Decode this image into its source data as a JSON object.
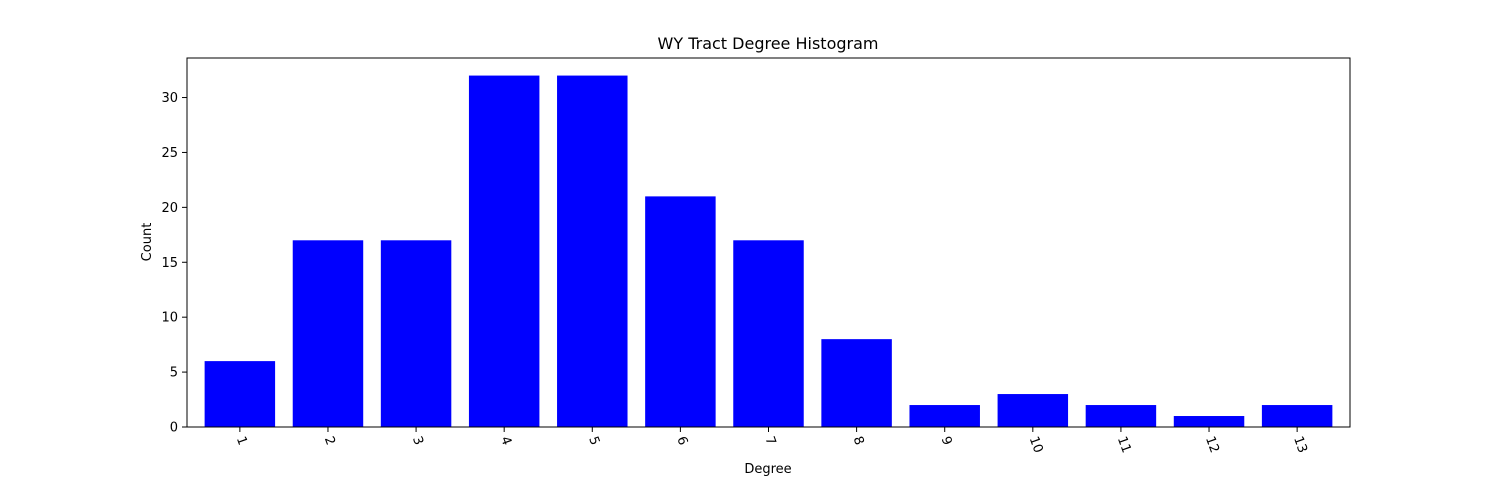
{
  "chart_data": {
    "type": "bar",
    "title": "WY Tract Degree Histogram",
    "xlabel": "Degree",
    "ylabel": "Count",
    "categories": [
      "1",
      "2",
      "3",
      "4",
      "5",
      "6",
      "7",
      "8",
      "9",
      "10",
      "11",
      "12",
      "13"
    ],
    "values": [
      6,
      17,
      17,
      32,
      32,
      21,
      17,
      8,
      2,
      3,
      2,
      1,
      2
    ],
    "ylim": [
      0,
      33.6
    ],
    "yticks": [
      0,
      5,
      10,
      15,
      20,
      25,
      30
    ],
    "xtick_rotation": -70,
    "grid": false,
    "legend": "none",
    "bar_color": "#0000ff"
  }
}
